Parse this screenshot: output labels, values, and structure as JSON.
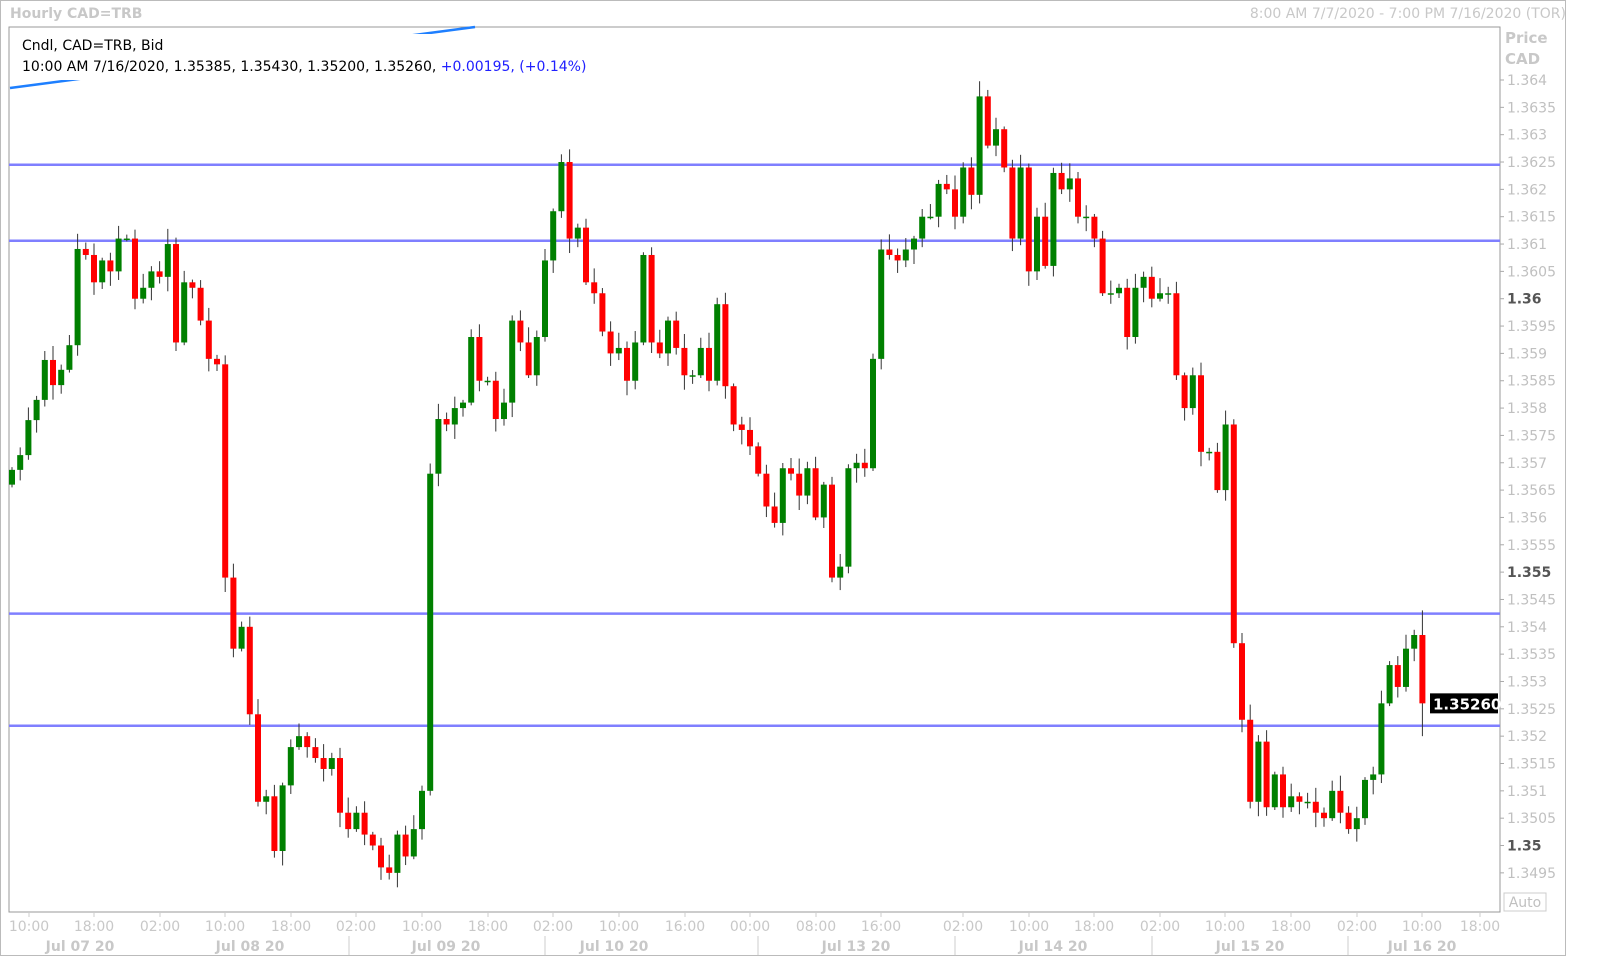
{
  "header": {
    "title": "Hourly CAD=TRB",
    "range": "8:00 AM 7/7/2020 - 7:00 PM 7/16/2020 (TOR)"
  },
  "legend": {
    "line1": "Cndl, CAD=TRB, Bid",
    "ohlc": "10:00 AM 7/16/2020, 1.35385, 1.35430, 1.35200, 1.35260,",
    "change": "+0.00195, (+0.14%)"
  },
  "axis": {
    "price_title": "Price",
    "currency": "CAD",
    "last_price": "1.35260",
    "auto_label": "Auto"
  },
  "colors": {
    "up": "#008000",
    "down": "#ff0000",
    "hline": "#7f7fff",
    "trend": "#1e7fff",
    "last_bg": "#000000"
  },
  "chart_data": {
    "type": "candlestick",
    "ylim": [
      1.349,
      1.3645
    ],
    "yticks": [
      "1.364",
      "1.3635",
      "1.363",
      "1.3625",
      "1.362",
      "1.3615",
      "1.361",
      "1.3605",
      "1.36",
      "1.3595",
      "1.359",
      "1.3585",
      "1.358",
      "1.3575",
      "1.357",
      "1.3565",
      "1.356",
      "1.3555",
      "1.355",
      "1.3545",
      "1.354",
      "1.3535",
      "1.353",
      "1.3525",
      "1.352",
      "1.3515",
      "1.351",
      "1.3505",
      "1.35",
      "1.3495"
    ],
    "time_ticks": [
      "10:00",
      "18:00",
      "02:00",
      "10:00",
      "18:00",
      "02:00",
      "10:00",
      "18:00",
      "02:00",
      "10:00",
      "16:00",
      "00:00",
      "08:00",
      "16:00",
      "02:00",
      "10:00",
      "18:00",
      "02:00",
      "10:00",
      "18:00",
      "02:00",
      "10:00",
      "18:00"
    ],
    "date_labels": [
      "Jul 07 20",
      "Jul 08 20",
      "Jul 09 20",
      "Jul 10 20",
      "Jul 13 20",
      "Jul 14 20",
      "Jul 15 20",
      "Jul 16 20"
    ],
    "horizontal_lines": [
      1.36245,
      1.36106,
      1.35424,
      1.35219
    ],
    "first_open": 1.3566,
    "closes": [
      1.35687,
      1.35714,
      1.35778,
      1.35815,
      1.35888,
      1.35842,
      1.3587,
      1.35915,
      1.36091,
      1.3608,
      1.3603,
      1.3607,
      1.3605,
      1.3611,
      1.3611,
      1.36,
      1.3602,
      1.3605,
      1.3604,
      1.361,
      1.3592,
      1.3603,
      1.3602,
      1.3596,
      1.3589,
      1.3588,
      1.3549,
      1.3536,
      1.354,
      1.3524,
      1.3508,
      1.3509,
      1.3499,
      1.3511,
      1.3518,
      1.352,
      1.3518,
      1.3516,
      1.3514,
      1.3516,
      1.3506,
      1.3503,
      1.3506,
      1.3502,
      1.35,
      1.3496,
      1.3495,
      1.3502,
      1.3498,
      1.3503,
      1.351,
      1.3568,
      1.3578,
      1.3577,
      1.358,
      1.3581,
      1.3593,
      1.3585,
      1.3585,
      1.3578,
      1.3581,
      1.3596,
      1.3592,
      1.3586,
      1.3593,
      1.3607,
      1.3616,
      1.3625,
      1.3611,
      1.3613,
      1.3603,
      1.3601,
      1.3594,
      1.359,
      1.3591,
      1.3585,
      1.3592,
      1.3608,
      1.3592,
      1.359,
      1.3596,
      1.3591,
      1.3586,
      1.3586,
      1.3591,
      1.3585,
      1.3599,
      1.3584,
      1.3577,
      1.3576,
      1.3573,
      1.3568,
      1.3562,
      1.3559,
      1.3569,
      1.3568,
      1.3564,
      1.3569,
      1.356,
      1.3566,
      1.3549,
      1.3551,
      1.3569,
      1.357,
      1.3569,
      1.3589,
      1.3609,
      1.3608,
      1.3607,
      1.3609,
      1.3611,
      1.3615,
      1.3615,
      1.3621,
      1.362,
      1.3615,
      1.3624,
      1.3619,
      1.3637,
      1.3628,
      1.3631,
      1.3624,
      1.3611,
      1.3624,
      1.3605,
      1.3615,
      1.3606,
      1.3623,
      1.362,
      1.3622,
      1.3615,
      1.3615,
      1.3611,
      1.3601,
      1.3601,
      1.3602,
      1.3593,
      1.3602,
      1.3604,
      1.36,
      1.3601,
      1.3601,
      1.3586,
      1.358,
      1.3586,
      1.3572,
      1.3572,
      1.3565,
      1.3577,
      1.3537,
      1.3523,
      1.3508,
      1.3519,
      1.3507,
      1.3513,
      1.3507,
      1.3509,
      1.3508,
      1.3508,
      1.3506,
      1.3505,
      1.351,
      1.3506,
      1.3503,
      1.3505,
      1.3512,
      1.3513,
      1.3526,
      1.3533,
      1.3529,
      1.3536,
      1.35385,
      1.3526
    ],
    "last_bar": {
      "open": 1.35385,
      "high": 1.3543,
      "low": 1.352,
      "close": 1.3526
    }
  }
}
